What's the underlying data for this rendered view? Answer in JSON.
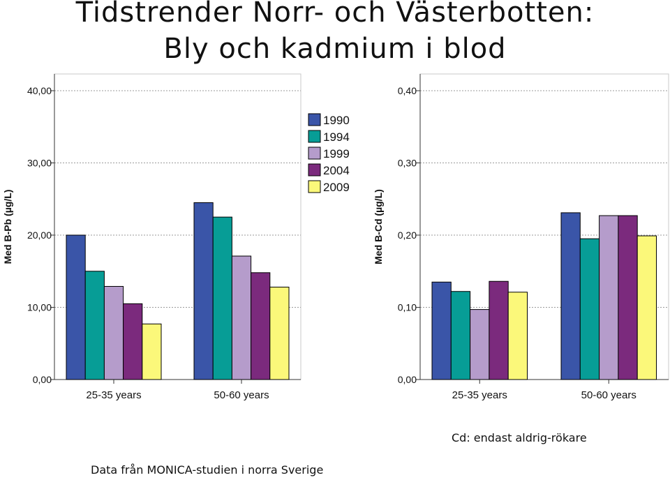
{
  "title": {
    "line1": "Tidstrender Norr- och Västerbotten:",
    "line2": "Bly och kadmium i blod"
  },
  "colors": {
    "1990": "#3a55a8",
    "1994": "#079d96",
    "1999": "#b59ccb",
    "2004": "#7b2a7d",
    "2009": "#fbf87a"
  },
  "legend": [
    "1990",
    "1994",
    "1999",
    "2004",
    "2009"
  ],
  "chart_data": [
    {
      "type": "bar",
      "ylabel": "Med B-Pb (µg/L)",
      "categories": [
        "25-35 years",
        "50-60 years"
      ],
      "ylim": [
        0,
        40
      ],
      "yticks": [
        "0,00",
        "10,00",
        "20,00",
        "30,00",
        "40,00"
      ],
      "grid": true,
      "legend_position": "top-right",
      "series": [
        {
          "name": "1990",
          "values": [
            20.0,
            24.5
          ]
        },
        {
          "name": "1994",
          "values": [
            15.0,
            22.5
          ]
        },
        {
          "name": "1999",
          "values": [
            12.9,
            17.1
          ]
        },
        {
          "name": "2004",
          "values": [
            10.5,
            14.8
          ]
        },
        {
          "name": "2009",
          "values": [
            7.7,
            12.8
          ]
        }
      ]
    },
    {
      "type": "bar",
      "ylabel": "Med B-Cd (µg/L)",
      "categories": [
        "25-35 years",
        "50-60 years"
      ],
      "ylim": [
        0,
        0.4
      ],
      "yticks": [
        "0,00",
        "0,10",
        "0,20",
        "0,30",
        "0,40"
      ],
      "grid": true,
      "series": [
        {
          "name": "1990",
          "values": [
            0.135,
            0.231
          ]
        },
        {
          "name": "1994",
          "values": [
            0.122,
            0.195
          ]
        },
        {
          "name": "1999",
          "values": [
            0.097,
            0.227
          ]
        },
        {
          "name": "2004",
          "values": [
            0.136,
            0.227
          ]
        },
        {
          "name": "2009",
          "values": [
            0.121,
            0.199
          ]
        }
      ]
    }
  ],
  "notes": {
    "cd": "Cd: endast aldrig-rökare",
    "source": "Data från MONICA-studien i norra Sverige"
  }
}
